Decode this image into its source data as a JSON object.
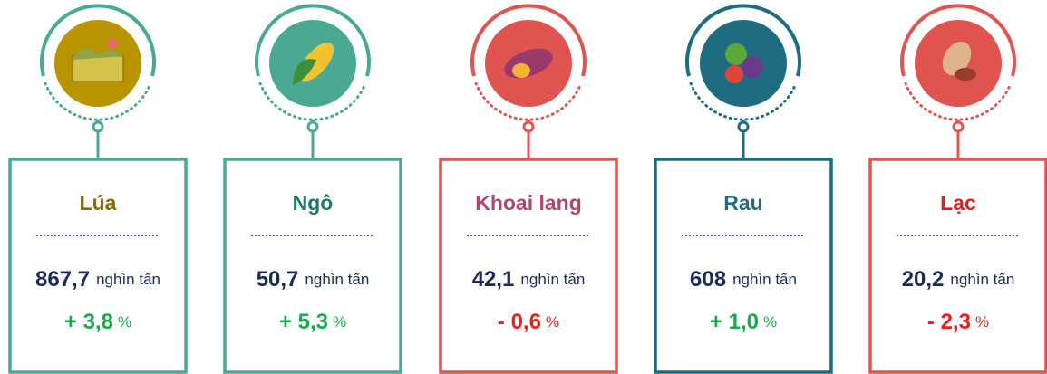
{
  "cards": [
    {
      "name": "Lúa",
      "value": "867,7",
      "unit": "nghìn tấn",
      "change": "+ 3,8",
      "change_unit": "%"
    },
    {
      "name": "Ngô",
      "value": "50,7",
      "unit": "nghìn tấn",
      "change": "+ 5,3",
      "change_unit": "%"
    },
    {
      "name": "Khoai lang",
      "value": "42,1",
      "unit": "nghìn tấn",
      "change": "- 0,6",
      "change_unit": "%"
    },
    {
      "name": "Rau",
      "value": "608",
      "unit": "nghìn tấn",
      "change": "+ 1,0",
      "change_unit": "%"
    },
    {
      "name": "Lạc",
      "value": "20,2",
      "unit": "nghìn tấn",
      "change": "- 2,3",
      "change_unit": "%"
    }
  ]
}
